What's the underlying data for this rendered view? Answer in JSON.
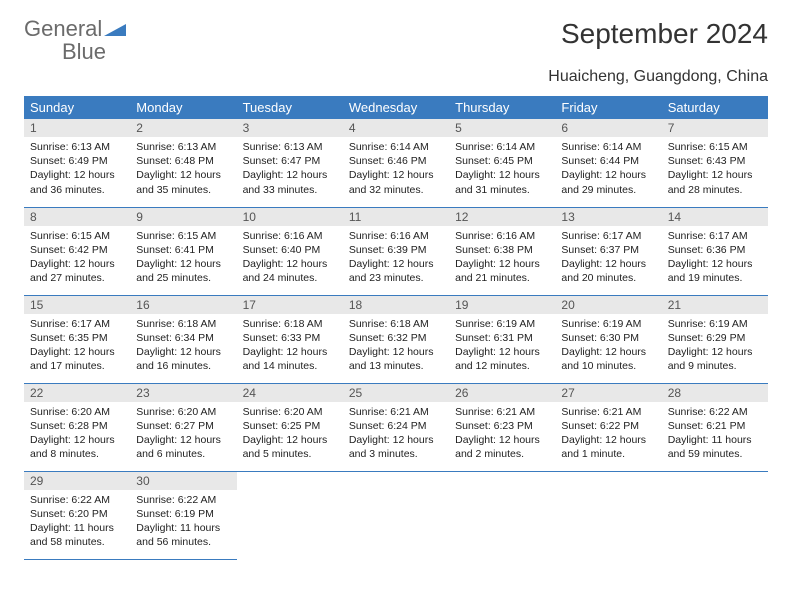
{
  "brand": {
    "part1": "General",
    "part2": "Blue"
  },
  "title": "September 2024",
  "location": "Huaicheng, Guangdong, China",
  "colors": {
    "accent": "#3a7bbf",
    "daynum_bg": "#e8e8e8",
    "text": "#333333"
  },
  "weekdays": [
    "Sunday",
    "Monday",
    "Tuesday",
    "Wednesday",
    "Thursday",
    "Friday",
    "Saturday"
  ],
  "grid": [
    [
      {
        "n": "1",
        "sr": "6:13 AM",
        "ss": "6:49 PM",
        "dl": "12 hours and 36 minutes."
      },
      {
        "n": "2",
        "sr": "6:13 AM",
        "ss": "6:48 PM",
        "dl": "12 hours and 35 minutes."
      },
      {
        "n": "3",
        "sr": "6:13 AM",
        "ss": "6:47 PM",
        "dl": "12 hours and 33 minutes."
      },
      {
        "n": "4",
        "sr": "6:14 AM",
        "ss": "6:46 PM",
        "dl": "12 hours and 32 minutes."
      },
      {
        "n": "5",
        "sr": "6:14 AM",
        "ss": "6:45 PM",
        "dl": "12 hours and 31 minutes."
      },
      {
        "n": "6",
        "sr": "6:14 AM",
        "ss": "6:44 PM",
        "dl": "12 hours and 29 minutes."
      },
      {
        "n": "7",
        "sr": "6:15 AM",
        "ss": "6:43 PM",
        "dl": "12 hours and 28 minutes."
      }
    ],
    [
      {
        "n": "8",
        "sr": "6:15 AM",
        "ss": "6:42 PM",
        "dl": "12 hours and 27 minutes."
      },
      {
        "n": "9",
        "sr": "6:15 AM",
        "ss": "6:41 PM",
        "dl": "12 hours and 25 minutes."
      },
      {
        "n": "10",
        "sr": "6:16 AM",
        "ss": "6:40 PM",
        "dl": "12 hours and 24 minutes."
      },
      {
        "n": "11",
        "sr": "6:16 AM",
        "ss": "6:39 PM",
        "dl": "12 hours and 23 minutes."
      },
      {
        "n": "12",
        "sr": "6:16 AM",
        "ss": "6:38 PM",
        "dl": "12 hours and 21 minutes."
      },
      {
        "n": "13",
        "sr": "6:17 AM",
        "ss": "6:37 PM",
        "dl": "12 hours and 20 minutes."
      },
      {
        "n": "14",
        "sr": "6:17 AM",
        "ss": "6:36 PM",
        "dl": "12 hours and 19 minutes."
      }
    ],
    [
      {
        "n": "15",
        "sr": "6:17 AM",
        "ss": "6:35 PM",
        "dl": "12 hours and 17 minutes."
      },
      {
        "n": "16",
        "sr": "6:18 AM",
        "ss": "6:34 PM",
        "dl": "12 hours and 16 minutes."
      },
      {
        "n": "17",
        "sr": "6:18 AM",
        "ss": "6:33 PM",
        "dl": "12 hours and 14 minutes."
      },
      {
        "n": "18",
        "sr": "6:18 AM",
        "ss": "6:32 PM",
        "dl": "12 hours and 13 minutes."
      },
      {
        "n": "19",
        "sr": "6:19 AM",
        "ss": "6:31 PM",
        "dl": "12 hours and 12 minutes."
      },
      {
        "n": "20",
        "sr": "6:19 AM",
        "ss": "6:30 PM",
        "dl": "12 hours and 10 minutes."
      },
      {
        "n": "21",
        "sr": "6:19 AM",
        "ss": "6:29 PM",
        "dl": "12 hours and 9 minutes."
      }
    ],
    [
      {
        "n": "22",
        "sr": "6:20 AM",
        "ss": "6:28 PM",
        "dl": "12 hours and 8 minutes."
      },
      {
        "n": "23",
        "sr": "6:20 AM",
        "ss": "6:27 PM",
        "dl": "12 hours and 6 minutes."
      },
      {
        "n": "24",
        "sr": "6:20 AM",
        "ss": "6:25 PM",
        "dl": "12 hours and 5 minutes."
      },
      {
        "n": "25",
        "sr": "6:21 AM",
        "ss": "6:24 PM",
        "dl": "12 hours and 3 minutes."
      },
      {
        "n": "26",
        "sr": "6:21 AM",
        "ss": "6:23 PM",
        "dl": "12 hours and 2 minutes."
      },
      {
        "n": "27",
        "sr": "6:21 AM",
        "ss": "6:22 PM",
        "dl": "12 hours and 1 minute."
      },
      {
        "n": "28",
        "sr": "6:22 AM",
        "ss": "6:21 PM",
        "dl": "11 hours and 59 minutes."
      }
    ],
    [
      {
        "n": "29",
        "sr": "6:22 AM",
        "ss": "6:20 PM",
        "dl": "11 hours and 58 minutes."
      },
      {
        "n": "30",
        "sr": "6:22 AM",
        "ss": "6:19 PM",
        "dl": "11 hours and 56 minutes."
      },
      null,
      null,
      null,
      null,
      null
    ]
  ],
  "labels": {
    "sunrise": "Sunrise:",
    "sunset": "Sunset:",
    "daylight": "Daylight:"
  }
}
